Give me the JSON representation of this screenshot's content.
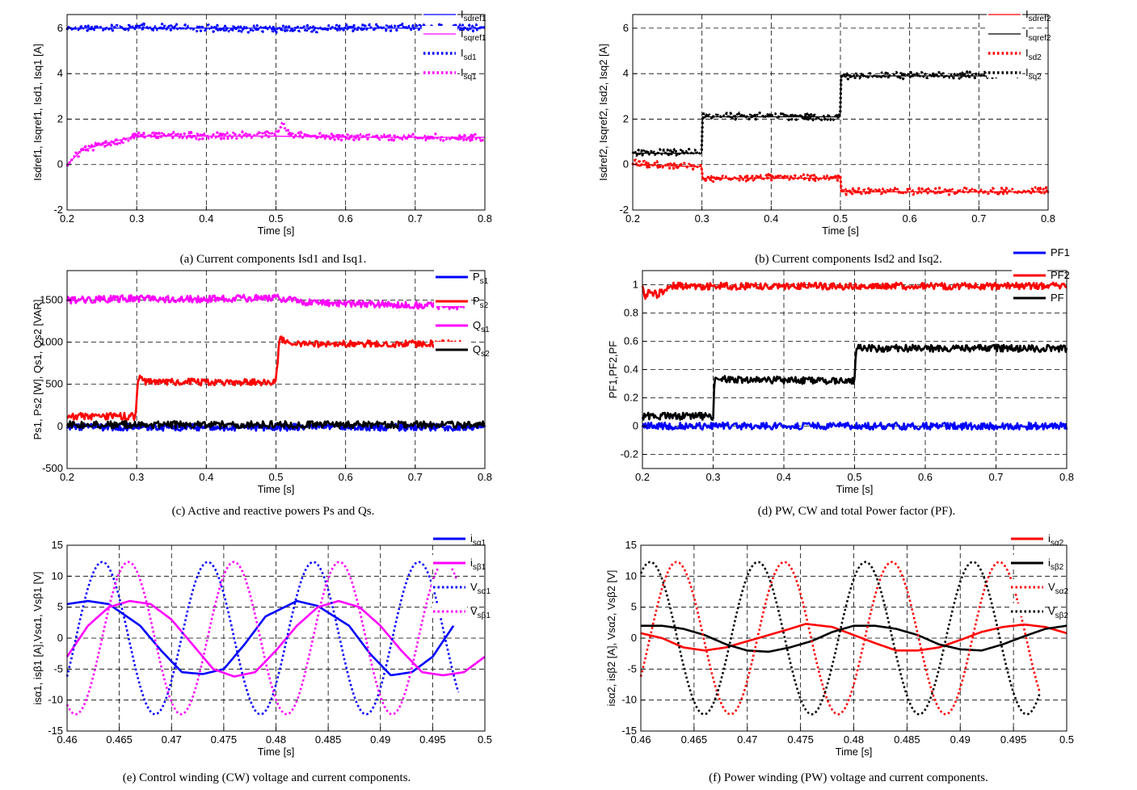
{
  "figure": {
    "captions": [
      "(a) Current components Isd1 and Isq1.",
      "(b) Current components Isd2 and Isq2.",
      "(c) Active and reactive powers Ps and Qs.",
      "(d) PW, CW and total Power factor (PF).",
      "(e) Control winding (CW) voltage and current components.",
      "(f) Power winding (PW) voltage and current components."
    ]
  },
  "chart_data": [
    {
      "id": "a",
      "type": "line",
      "xlabel": "Time [s]",
      "ylabel": "Isdref1, Isqref1, Isd1, Isq1 [A]",
      "xlim": [
        0.2,
        0.8
      ],
      "ylim": [
        -2,
        6.6
      ],
      "xticks": [
        0.2,
        0.3,
        0.4,
        0.5,
        0.6,
        0.7,
        0.8
      ],
      "yticks": [
        -2,
        0,
        2,
        4,
        6
      ],
      "grid": true,
      "legend": "outside-right",
      "series": [
        {
          "name": "Isdref1",
          "color": "#0000ff",
          "style": "solid",
          "x": [
            0.2,
            0.8
          ],
          "y": [
            6.0,
            6.0
          ]
        },
        {
          "name": "Isqref1",
          "color": "#ff00ff",
          "style": "solid",
          "x": [
            0.2,
            0.22,
            0.25,
            0.3,
            0.4,
            0.5,
            0.6,
            0.8
          ],
          "y": [
            0.0,
            0.6,
            0.9,
            1.25,
            1.25,
            1.25,
            1.2,
            1.2
          ]
        },
        {
          "name": "Isd1",
          "color": "#0000ff",
          "style": "dotted",
          "x": [
            0.2,
            0.3,
            0.4,
            0.5,
            0.6,
            0.7,
            0.8
          ],
          "y": [
            6.0,
            6.05,
            6.0,
            5.95,
            6.0,
            6.05,
            6.0
          ]
        },
        {
          "name": "Isq1",
          "color": "#ff00ff",
          "style": "dotted",
          "x": [
            0.2,
            0.21,
            0.22,
            0.25,
            0.28,
            0.3,
            0.35,
            0.4,
            0.45,
            0.5,
            0.51,
            0.52,
            0.55,
            0.6,
            0.7,
            0.8
          ],
          "y": [
            0.0,
            0.3,
            0.6,
            0.9,
            1.05,
            1.3,
            1.3,
            1.25,
            1.3,
            1.35,
            1.8,
            1.35,
            1.25,
            1.2,
            1.2,
            1.2
          ]
        }
      ]
    },
    {
      "id": "b",
      "type": "line",
      "xlabel": "Time [s]",
      "ylabel": "Isdref2, Isqref2, Isd2, Isq2 [A]",
      "xlim": [
        0.2,
        0.8
      ],
      "ylim": [
        -2,
        6.6
      ],
      "xticks": [
        0.2,
        0.3,
        0.4,
        0.5,
        0.6,
        0.7,
        0.8
      ],
      "yticks": [
        -2,
        0,
        2,
        4,
        6
      ],
      "grid": true,
      "legend": "outside-right",
      "series": [
        {
          "name": "Isdref2",
          "color": "#ff0000",
          "style": "solid",
          "x": [
            0.2,
            0.3,
            0.3,
            0.5,
            0.5,
            0.8
          ],
          "y": [
            0.0,
            -0.1,
            -0.6,
            -0.6,
            -1.2,
            -1.2
          ]
        },
        {
          "name": "Isqref2",
          "color": "#000000",
          "style": "solid",
          "x": [
            0.2,
            0.3,
            0.3,
            0.5,
            0.5,
            0.76
          ],
          "y": [
            0.5,
            0.5,
            2.1,
            2.1,
            3.9,
            3.9
          ]
        },
        {
          "name": "Isd2",
          "color": "#ff0000",
          "style": "dotted",
          "x": [
            0.2,
            0.3,
            0.3,
            0.5,
            0.5,
            0.8
          ],
          "y": [
            0.05,
            -0.1,
            -0.6,
            -0.55,
            -1.2,
            -1.15
          ]
        },
        {
          "name": "Isq2",
          "color": "#000000",
          "style": "dotted",
          "x": [
            0.2,
            0.3,
            0.3,
            0.5,
            0.5,
            0.76
          ],
          "y": [
            0.55,
            0.55,
            2.15,
            2.1,
            3.9,
            3.95
          ]
        }
      ]
    },
    {
      "id": "c",
      "type": "line",
      "xlabel": "Time [s]",
      "ylabel": "Ps1, Ps2 [W], Qs1, Qs2 [VAR]",
      "xlim": [
        0.2,
        0.8
      ],
      "ylim": [
        -500,
        1850
      ],
      "xticks": [
        0.2,
        0.3,
        0.4,
        0.5,
        0.6,
        0.7,
        0.8
      ],
      "yticks": [
        -500,
        0,
        500,
        1000,
        1500
      ],
      "grid": true,
      "legend": "outside-right",
      "series": [
        {
          "name": "Ps1",
          "color": "#0000ff",
          "style": "solid",
          "x": [
            0.2,
            0.8
          ],
          "y": [
            -10,
            -10
          ]
        },
        {
          "name": "Ps2",
          "color": "#ff0000",
          "style": "solid",
          "x": [
            0.2,
            0.298,
            0.302,
            0.31,
            0.5,
            0.5,
            0.505,
            0.52,
            0.77
          ],
          "y": [
            120,
            120,
            600,
            530,
            520,
            520,
            1060,
            980,
            980
          ]
        },
        {
          "name": "Qs1",
          "color": "#ff00ff",
          "style": "solid",
          "x": [
            0.2,
            0.3,
            0.4,
            0.5,
            0.55,
            0.6,
            0.7,
            0.77
          ],
          "y": [
            1500,
            1520,
            1510,
            1530,
            1470,
            1460,
            1440,
            1430
          ]
        },
        {
          "name": "Qs2",
          "color": "#000000",
          "style": "solid",
          "x": [
            0.2,
            0.8
          ],
          "y": [
            20,
            20
          ]
        }
      ]
    },
    {
      "id": "d",
      "type": "line",
      "xlabel": "Time [s]",
      "ylabel": "PF1,PF2,PF",
      "xlim": [
        0.2,
        0.8
      ],
      "ylim": [
        -0.3,
        1.1
      ],
      "xticks": [
        0.2,
        0.3,
        0.4,
        0.5,
        0.6,
        0.7,
        0.8
      ],
      "yticks": [
        -0.2,
        0,
        0.2,
        0.4,
        0.6,
        0.8,
        1
      ],
      "grid": true,
      "legend": "outside-right",
      "series": [
        {
          "name": "PF1",
          "color": "#0000ff",
          "style": "solid",
          "x": [
            0.2,
            0.8
          ],
          "y": [
            0.0,
            0.0
          ]
        },
        {
          "name": "PF2",
          "color": "#ff0000",
          "style": "solid",
          "x": [
            0.2,
            0.205,
            0.21,
            0.22,
            0.24,
            0.8
          ],
          "y": [
            1.0,
            0.9,
            0.96,
            0.93,
            0.99,
            0.99
          ]
        },
        {
          "name": "PF",
          "color": "#000000",
          "style": "solid",
          "x": [
            0.2,
            0.3,
            0.302,
            0.31,
            0.5,
            0.502,
            0.51,
            0.8
          ],
          "y": [
            0.07,
            0.07,
            0.35,
            0.33,
            0.32,
            0.55,
            0.55,
            0.55
          ]
        }
      ]
    },
    {
      "id": "e",
      "type": "line",
      "xlabel": "Time [s]",
      "ylabel": "isα1, isβ1 [A],Vsα1, Vsβ1 [V]",
      "xlim": [
        0.46,
        0.5
      ],
      "ylim": [
        -15,
        15
      ],
      "xticks": [
        0.46,
        0.465,
        0.47,
        0.475,
        0.48,
        0.485,
        0.49,
        0.495,
        0.5
      ],
      "yticks": [
        -15,
        -10,
        -5,
        0,
        5,
        10,
        15
      ],
      "grid": true,
      "legend": "outside-right",
      "series": [
        {
          "name": "isα1",
          "color": "#0000ff",
          "style": "solid",
          "x": [
            0.46,
            0.462,
            0.464,
            0.467,
            0.469,
            0.471,
            0.473,
            0.475,
            0.477,
            0.479,
            0.482,
            0.484,
            0.487,
            0.489,
            0.491,
            0.493,
            0.495,
            0.497
          ],
          "y": [
            5.5,
            6.0,
            5.5,
            2.0,
            -2.0,
            -5.5,
            -5.8,
            -5.0,
            -1.0,
            3.5,
            6.0,
            5.2,
            2.0,
            -2.5,
            -6.0,
            -5.5,
            -3.0,
            2.0
          ]
        },
        {
          "name": "isβ1",
          "color": "#ff00ff",
          "style": "solid",
          "x": [
            0.46,
            0.462,
            0.464,
            0.466,
            0.468,
            0.47,
            0.472,
            0.474,
            0.476,
            0.478,
            0.48,
            0.482,
            0.484,
            0.486,
            0.488,
            0.49,
            0.492,
            0.494,
            0.496,
            0.498,
            0.5
          ],
          "y": [
            -3.0,
            2.0,
            5.0,
            6.0,
            5.5,
            3.0,
            -1.0,
            -5.0,
            -6.2,
            -5.5,
            -2.0,
            2.0,
            5.0,
            6.0,
            5.0,
            2.0,
            -2.0,
            -5.5,
            -6.0,
            -5.5,
            -3.0
          ]
        },
        {
          "name": "Vsα1",
          "color": "#0000ff",
          "style": "dotted",
          "amp": 12.3,
          "period": 0.0101,
          "phase_zero": 0.46085,
          "x_end": 0.4975
        },
        {
          "name": "Vsβ1",
          "color": "#ff00ff",
          "style": "dotted",
          "amp": 12.3,
          "period": 0.0101,
          "phase_zero": 0.46335,
          "x_end": 0.4975
        }
      ]
    },
    {
      "id": "f",
      "type": "line",
      "xlabel": "Time [s]",
      "ylabel": "isα2, isβ2 [A], Vsα2, Vsβ2 [V]",
      "xlim": [
        0.46,
        0.5
      ],
      "ylim": [
        -15,
        15
      ],
      "xticks": [
        0.46,
        0.465,
        0.47,
        0.475,
        0.48,
        0.485,
        0.49,
        0.495,
        0.5
      ],
      "yticks": [
        -15,
        -10,
        -5,
        0,
        5,
        10,
        15
      ],
      "grid": true,
      "legend": "outside-right",
      "series": [
        {
          "name": "isα2",
          "color": "#ff0000",
          "style": "solid",
          "x": [
            0.46,
            0.462,
            0.464,
            0.466,
            0.468,
            0.47,
            0.472,
            0.474,
            0.4755,
            0.478,
            0.48,
            0.482,
            0.484,
            0.486,
            0.488,
            0.49,
            0.492,
            0.494,
            0.496,
            0.498,
            0.5
          ],
          "y": [
            0.8,
            0.0,
            -1.5,
            -2.0,
            -1.5,
            -0.5,
            0.5,
            1.5,
            2.3,
            1.8,
            0.5,
            -0.8,
            -2.0,
            -2.0,
            -1.5,
            -0.3,
            1.0,
            1.8,
            2.2,
            1.8,
            0.8
          ]
        },
        {
          "name": "isβ2",
          "color": "#000000",
          "style": "solid",
          "x": [
            0.46,
            0.462,
            0.464,
            0.466,
            0.468,
            0.47,
            0.472,
            0.474,
            0.476,
            0.478,
            0.48,
            0.482,
            0.484,
            0.486,
            0.488,
            0.49,
            0.492,
            0.494,
            0.496,
            0.498,
            0.5
          ],
          "y": [
            2.0,
            2.0,
            1.5,
            0.5,
            -1.0,
            -2.0,
            -2.2,
            -1.5,
            -0.5,
            1.0,
            2.0,
            2.0,
            1.5,
            0.5,
            -1.0,
            -1.8,
            -2.0,
            -1.0,
            0.3,
            1.5,
            2.0
          ]
        },
        {
          "name": "Vsα2",
          "color": "#ff0000",
          "style": "dotted",
          "amp": 12.3,
          "period": 0.0101,
          "phase_zero": 0.46085,
          "x_end": 0.4975,
          "x_start": 0.46
        },
        {
          "name": "Vsβ2",
          "color": "#000000",
          "style": "dotted",
          "amp": 12.3,
          "period": 0.0101,
          "phase_zero": 0.45837,
          "x_end": 0.4975
        }
      ]
    }
  ]
}
